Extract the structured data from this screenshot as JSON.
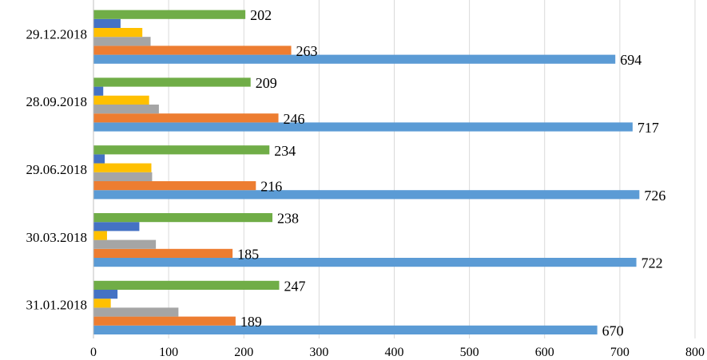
{
  "chart_data": {
    "type": "bar",
    "orientation": "horizontal",
    "categories": [
      "31.01.2018",
      "30.03.2018",
      "29.06.2018",
      "28.09.2018",
      "29.12.2018"
    ],
    "series": [
      {
        "values": [
          670,
          722,
          726,
          717,
          694
        ],
        "color": "#5B9BD5",
        "show_labels": true
      },
      {
        "values": [
          189,
          185,
          216,
          246,
          263
        ],
        "color": "#ED7D31",
        "show_labels": true
      },
      {
        "values": [
          113,
          83,
          78,
          87,
          76
        ],
        "color": "#A5A5A5",
        "show_labels": false
      },
      {
        "values": [
          23,
          18,
          77,
          74,
          65
        ],
        "color": "#FFC000",
        "show_labels": false
      },
      {
        "values": [
          32,
          61,
          15,
          13,
          36
        ],
        "color": "#4472C4",
        "show_labels": false
      },
      {
        "values": [
          247,
          238,
          234,
          209,
          202
        ],
        "color": "#70AD47",
        "show_labels": true
      }
    ],
    "xlim": [
      0,
      800
    ],
    "x_ticks": [
      "0",
      "100",
      "200",
      "300",
      "400",
      "500",
      "600",
      "700",
      "800"
    ],
    "grid": "vertical",
    "legend": "none",
    "title": "",
    "xlabel": "",
    "ylabel": ""
  }
}
